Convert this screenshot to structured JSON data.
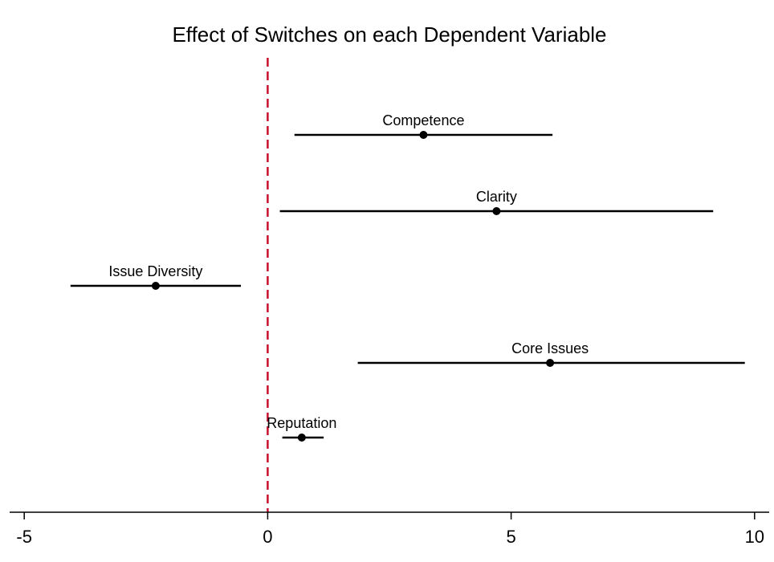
{
  "chart_data": {
    "type": "scatter",
    "subtype": "coefficient-plot-with-confidence-intervals",
    "title": "Effect of Switches on each Dependent Variable",
    "xlabel": "",
    "ylabel": "",
    "xlim": [
      -5.3,
      10.3
    ],
    "x_ticks": [
      -5,
      0,
      5,
      10
    ],
    "x_tick_labels": [
      "-5",
      "0",
      "5",
      "10"
    ],
    "grid": false,
    "legend": "none",
    "reference_line": {
      "x": 0,
      "style": "dashed",
      "color": "#c8102e"
    },
    "points": [
      {
        "label": "Competence",
        "estimate": 3.2,
        "ci_low": 0.55,
        "ci_high": 5.85
      },
      {
        "label": "Clarity",
        "estimate": 4.7,
        "ci_low": 0.25,
        "ci_high": 9.15
      },
      {
        "label": "Issue Diversity",
        "estimate": -2.3,
        "ci_low": -4.05,
        "ci_high": -0.55
      },
      {
        "label": "Core Issues",
        "estimate": 5.8,
        "ci_low": 1.85,
        "ci_high": 9.8
      },
      {
        "label": "Reputation",
        "estimate": 0.7,
        "ci_low": 0.3,
        "ci_high": 1.15
      }
    ]
  },
  "colors": {
    "marks": "#000000",
    "reference_line": "#c8102e",
    "background": "#ffffff"
  }
}
